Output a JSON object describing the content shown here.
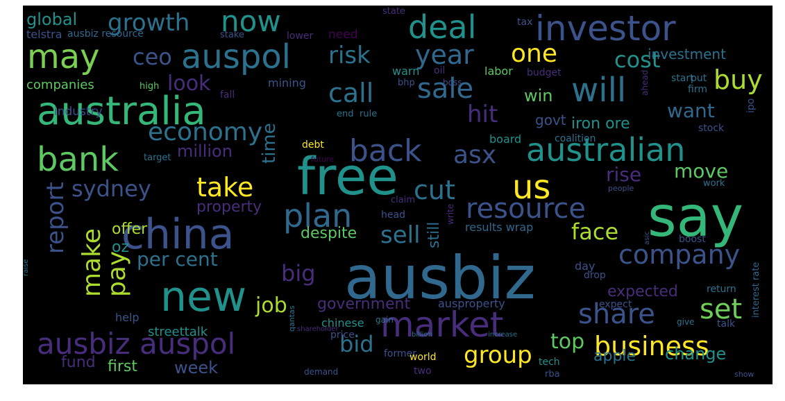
{
  "wordcloud": {
    "background": "#000000",
    "palette": [
      "#440154",
      "#472d7b",
      "#3b528b",
      "#2c728e",
      "#21918c",
      "#28ae80",
      "#5ec962",
      "#addc30",
      "#fde725"
    ],
    "words": [
      {
        "text": "ausbiz",
        "color": "#31688e"
      },
      {
        "text": "say",
        "color": "#35b779"
      },
      {
        "text": "free",
        "color": "#21918c"
      },
      {
        "text": "china",
        "color": "#3b528b"
      },
      {
        "text": "australia",
        "color": "#35b779"
      },
      {
        "text": "new",
        "color": "#21918c"
      },
      {
        "text": "investor",
        "color": "#3b528b"
      },
      {
        "text": "market",
        "color": "#472d7b"
      },
      {
        "text": "australian",
        "color": "#21918c"
      },
      {
        "text": "ausbiz auspol",
        "color": "#472d7b"
      },
      {
        "text": "bank",
        "color": "#5ec962"
      },
      {
        "text": "auspol",
        "color": "#2c728e"
      },
      {
        "text": "will",
        "color": "#2c728e"
      },
      {
        "text": "deal",
        "color": "#21918c"
      },
      {
        "text": "may",
        "color": "#7ad151"
      },
      {
        "text": "company",
        "color": "#3b528b"
      },
      {
        "text": "business",
        "color": "#fde725"
      },
      {
        "text": "plan",
        "color": "#31688e"
      },
      {
        "text": "share",
        "color": "#3b528b"
      },
      {
        "text": "set",
        "color": "#6ece58"
      },
      {
        "text": "us",
        "color": "#fde725"
      },
      {
        "text": "year",
        "color": "#31688e"
      },
      {
        "text": "back",
        "color": "#3b528b"
      },
      {
        "text": "economy",
        "color": "#2c728e"
      },
      {
        "text": "sale",
        "color": "#31688e"
      },
      {
        "text": "take",
        "color": "#fde725"
      },
      {
        "text": "resource",
        "color": "#3b528b"
      },
      {
        "text": "cut",
        "color": "#2c728e"
      },
      {
        "text": "sydney",
        "color": "#3b528b"
      },
      {
        "text": "now",
        "color": "#21918c"
      },
      {
        "text": "growth",
        "color": "#2c728e"
      },
      {
        "text": "call",
        "color": "#2c728e"
      },
      {
        "text": "risk",
        "color": "#2c728e"
      },
      {
        "text": "report",
        "color": "#3b528b"
      },
      {
        "text": "make",
        "color": "#addc30"
      },
      {
        "text": "pay",
        "color": "#addc30"
      },
      {
        "text": "asx",
        "color": "#3b528b"
      },
      {
        "text": "sell",
        "color": "#2c728e"
      },
      {
        "text": "one",
        "color": "#fde725"
      },
      {
        "text": "buy",
        "color": "#addc30"
      },
      {
        "text": "hit",
        "color": "#472d7b"
      },
      {
        "text": "bid",
        "color": "#2c728e"
      },
      {
        "text": "big",
        "color": "#472d7b"
      },
      {
        "text": "group",
        "color": "#fde725"
      },
      {
        "text": "ceo",
        "color": "#3b528b"
      },
      {
        "text": "cost",
        "color": "#21918c"
      },
      {
        "text": "face",
        "color": "#addc30"
      },
      {
        "text": "top",
        "color": "#5ec962"
      },
      {
        "text": "job",
        "color": "#addc30"
      },
      {
        "text": "look",
        "color": "#472d7b"
      },
      {
        "text": "rise",
        "color": "#472d7b"
      },
      {
        "text": "move",
        "color": "#5ec962"
      },
      {
        "text": "want",
        "color": "#31688e"
      },
      {
        "text": "per cent",
        "color": "#2c728e"
      },
      {
        "text": "global",
        "color": "#21918c"
      },
      {
        "text": "week",
        "color": "#3b528b"
      },
      {
        "text": "change",
        "color": "#21918c"
      },
      {
        "text": "investment",
        "color": "#2c728e"
      },
      {
        "text": "fund",
        "color": "#472d7b"
      },
      {
        "text": "first",
        "color": "#5ec962"
      },
      {
        "text": "time",
        "color": "#2c728e"
      },
      {
        "text": "win",
        "color": "#5ec962"
      },
      {
        "text": "million",
        "color": "#472d7b"
      },
      {
        "text": "property",
        "color": "#472d7b"
      },
      {
        "text": "government",
        "color": "#472d7b"
      },
      {
        "text": "apple",
        "color": "#2c728e"
      },
      {
        "text": "expected",
        "color": "#472d7b"
      },
      {
        "text": "offer",
        "color": "#addc30"
      },
      {
        "text": "oz",
        "color": "#21918c"
      },
      {
        "text": "despite",
        "color": "#5ec962"
      },
      {
        "text": "companies",
        "color": "#5ec962"
      },
      {
        "text": "govt",
        "color": "#3b528b"
      },
      {
        "text": "iron ore",
        "color": "#21918c"
      },
      {
        "text": "still",
        "color": "#2c728e"
      },
      {
        "text": "streettalk",
        "color": "#21918c"
      },
      {
        "text": "results wrap",
        "color": "#31688e"
      },
      {
        "text": "telstra",
        "color": "#3b528b"
      },
      {
        "text": "ausbiz resource",
        "color": "#31688e"
      },
      {
        "text": "stake",
        "color": "#3b528b"
      },
      {
        "text": "need",
        "color": "#440154"
      },
      {
        "text": "state",
        "color": "#472d7b"
      },
      {
        "text": "tax",
        "color": "#3b528b"
      },
      {
        "text": "lower",
        "color": "#472d7b"
      },
      {
        "text": "warn",
        "color": "#21918c"
      },
      {
        "text": "mining",
        "color": "#3b528b"
      },
      {
        "text": "bhp",
        "color": "#3b528b"
      },
      {
        "text": "oil",
        "color": "#472d7b"
      },
      {
        "text": "labor",
        "color": "#5ec962"
      },
      {
        "text": "budget",
        "color": "#472d7b"
      },
      {
        "text": "boss",
        "color": "#3b528b"
      },
      {
        "text": "start",
        "color": "#2c728e"
      },
      {
        "text": "firm",
        "color": "#2c728e"
      },
      {
        "text": "high",
        "color": "#5ec962"
      },
      {
        "text": "fall",
        "color": "#472d7b"
      },
      {
        "text": "put",
        "color": "#2c728e"
      },
      {
        "text": "industry",
        "color": "#3b528b"
      },
      {
        "text": "end",
        "color": "#2c728e"
      },
      {
        "text": "rule",
        "color": "#2c728e"
      },
      {
        "text": "board",
        "color": "#21918c"
      },
      {
        "text": "coalition",
        "color": "#2c728e"
      },
      {
        "text": "stock",
        "color": "#3b528b"
      },
      {
        "text": "ipo",
        "color": "#3b528b"
      },
      {
        "text": "target",
        "color": "#2c728e"
      },
      {
        "text": "debt",
        "color": "#fde725"
      },
      {
        "text": "future",
        "color": "#440154"
      },
      {
        "text": "work",
        "color": "#2c728e"
      },
      {
        "text": "people",
        "color": "#3b528b"
      },
      {
        "text": "head",
        "color": "#3b528b"
      },
      {
        "text": "claim",
        "color": "#472d7b"
      },
      {
        "text": "write",
        "color": "#472d7b"
      },
      {
        "text": "day",
        "color": "#3b528b"
      },
      {
        "text": "boost",
        "color": "#3b528b"
      },
      {
        "text": "help",
        "color": "#3b528b"
      },
      {
        "text": "chinese",
        "color": "#21918c"
      },
      {
        "text": "price",
        "color": "#3b528b"
      },
      {
        "text": "gain",
        "color": "#2c728e"
      },
      {
        "text": "ausproperty",
        "color": "#3b528b"
      },
      {
        "text": "drop",
        "color": "#3b528b"
      },
      {
        "text": "expect",
        "color": "#3b528b"
      },
      {
        "text": "return",
        "color": "#2c728e"
      },
      {
        "text": "give",
        "color": "#2c728e"
      },
      {
        "text": "talk",
        "color": "#3b528b"
      },
      {
        "text": "former",
        "color": "#3b528b"
      },
      {
        "text": "world",
        "color": "#fde725"
      },
      {
        "text": "tech",
        "color": "#21918c"
      },
      {
        "text": "demand",
        "color": "#3b528b"
      },
      {
        "text": "rba",
        "color": "#3b528b"
      },
      {
        "text": "two",
        "color": "#472d7b"
      },
      {
        "text": "show",
        "color": "#3b528b"
      },
      {
        "text": "interest rate",
        "color": "#31688e"
      },
      {
        "text": "qantas",
        "color": "#2c728e"
      },
      {
        "text": "raise",
        "color": "#2c728e"
      },
      {
        "text": "increase",
        "color": "#2c728e"
      },
      {
        "text": "billion",
        "color": "#2c728e"
      },
      {
        "text": "shareholder",
        "color": "#472d7b"
      },
      {
        "text": "ahead",
        "color": "#472d7b"
      },
      {
        "text": "asic",
        "color": "#3b528b"
      }
    ]
  }
}
